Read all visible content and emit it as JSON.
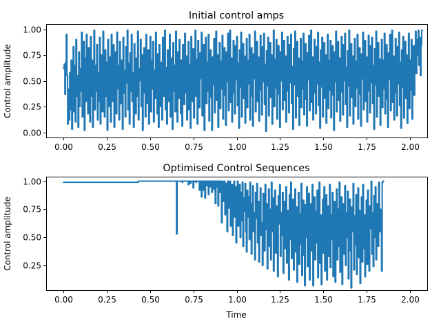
{
  "chart_data": [
    {
      "type": "line",
      "title": "Initial control amps",
      "xlabel": "",
      "ylabel": "Control amplitude",
      "xlim": [
        -0.1,
        2.1
      ],
      "ylim": [
        -0.05,
        1.05
      ],
      "xticks": [
        "0.00",
        "0.25",
        "0.50",
        "0.75",
        "1.00",
        "1.25",
        "1.50",
        "1.75",
        "2.00"
      ],
      "yticks": [
        "0.00",
        "0.25",
        "0.50",
        "0.75",
        "1.00"
      ],
      "grid": false,
      "color": "#1f77b4",
      "drawstyle": "steps",
      "step": 0.004,
      "series": [
        {
          "values": [
            0.62,
            0.66,
            0.37,
            0.68,
            0.95,
            0.55,
            0.08,
            0.42,
            0.12,
            0.58,
            0.22,
            0.7,
            0.03,
            0.48,
            0.83,
            0.2,
            0.65,
            0.1,
            0.9,
            0.35,
            0.55,
            0.05,
            0.78,
            0.25,
            0.62,
            0.4,
            0.97,
            0.15,
            0.5,
            0.88,
            0.02,
            0.72,
            0.3,
            0.95,
            0.45,
            0.18,
            0.82,
            0.6,
            0.1,
            0.93,
            0.35,
            0.7,
            0.05,
            0.52,
            0.99,
            0.22,
            0.65,
            0.4,
            0.85,
            0.12,
            0.58,
            0.3,
            0.92,
            0.08,
            0.75,
            0.45,
            0.2,
            0.98,
            0.55,
            0.15,
            0.8,
            0.35,
            0.68,
            0.02,
            0.9,
            0.48,
            0.25,
            0.73,
            0.1,
            0.95,
            0.6,
            0.3,
            0.85,
            0.05,
            0.5,
            0.78,
            0.18,
            0.97,
            0.42,
            0.65,
            0.12,
            0.88,
            0.55,
            0.28,
            0.7,
            0.03,
            0.92,
            0.38,
            0.6,
            0.15,
            0.83,
            0.48,
            0.99,
            0.22,
            0.67,
            0.08,
            0.77,
            0.4,
            0.95,
            0.3,
            0.58,
            0.05,
            0.86,
            0.45,
            0.18,
            0.72,
            0.35,
            0.98,
            0.12,
            0.62,
            0.5,
            0.9,
            0.25,
            0.75,
            0.02,
            0.55,
            0.82,
            0.38,
            0.15,
            0.95,
            0.65,
            0.28,
            0.8,
            0.08,
            0.47,
            0.93,
            0.2,
            0.7,
            0.42,
            0.88,
            0.1,
            0.6,
            0.33,
            0.97,
            0.52,
            0.18,
            0.76,
            0.05,
            0.85,
            0.45,
            0.25,
            0.68,
            0.12,
            0.92,
            0.55,
            0.35,
            0.99,
            0.22,
            0.63,
            0.08,
            0.8,
            0.48,
            0.3,
            0.95,
            0.15,
            0.58,
            0.72,
            0.03,
            0.87,
            0.4,
            0.65,
            0.2,
            0.98,
            0.52,
            0.1,
            0.78,
            0.33,
            0.9,
            0.45,
            0.18,
            0.7,
            0.06,
            0.85,
            0.6,
            0.27,
            0.96,
            0.38,
            0.74,
            0.12,
            0.55,
            0.88,
            0.22,
            0.66,
            0.04,
            0.93,
            0.47,
            0.3,
            0.81,
            0.14,
            0.59,
            0.99,
            0.35,
            0.71,
            0.08,
            0.89,
            0.43,
            0.24,
            0.77,
            0.52,
            0.97,
            0.16,
            0.63,
            0.85,
            0.02,
            0.5,
            0.92,
            0.28,
            0.68,
            0.4,
            0.95,
            0.11,
            0.57,
            0.8,
            0.34,
            0.02,
            0.73,
            0.46,
            0.91,
            0.19,
            0.64,
            0.98,
            0.31,
            0.75,
            0.05,
            0.54,
            0.87,
            0.23,
            0.69,
            0.42,
            0.94,
            0.13,
            0.6,
            0.82,
            0.36,
            0.07,
            0.78,
            0.49,
            0.96,
            0.21,
            0.65,
            0.99,
            0.29,
            0.72,
            0.1,
            0.56,
            0.89,
            0.38,
            0.18,
            0.84,
            0.51,
            0.93,
            0.26,
            0.67,
            0.04,
            0.8,
            0.44,
            0.97,
            0.15,
            0.61,
            0.86,
            0.33,
            0.74,
            0.09,
            0.58,
            0.91,
            0.24,
            0.7,
            0.47,
            0.95,
            0.12,
            0.63,
            0.82,
            0.35,
            0.06,
            0.76,
            0.52,
            0.98,
            0.2,
            0.68,
            0.88,
            0.3,
            0.73,
            0.11,
            0.57,
            0.94,
            0.41,
            0.17,
            0.83,
            0.49,
            0.96,
            0.27,
            0.66,
            0.01,
            0.79,
            0.45,
            0.92,
            0.16,
            0.62,
            0.87,
            0.34,
            0.75,
            0.08,
            0.55,
            0.99,
            0.25,
            0.71,
            0.43,
            0.9,
            0.13,
            0.6,
            0.84,
            0.37,
            0.05,
            0.78,
            0.5,
            0.97,
            0.22,
            0.67,
            0.89,
            0.31,
            0.74,
            0.1,
            0.56,
            0.93,
            0.4,
            0.19,
            0.85,
            0.48,
            0.95,
            0.28,
            0.64,
            0.03,
            0.81,
            0.46,
            0.98,
            0.14,
            0.61,
            0.88,
            0.35,
            0.72,
            0.07,
            0.53,
            0.91,
            0.24,
            0.69,
            0.42,
            0.96,
            0.17,
            0.63,
            0.86,
            0.32,
            0.06,
            0.77,
            0.51,
            0.94,
            0.21,
            0.65,
            0.99,
            0.29,
            0.73,
            0.12,
            0.58,
            0.9,
            0.38,
            0.18,
            0.83,
            0.47,
            0.97,
            0.26,
            0.68,
            0.04,
            0.8,
            0.44,
            0.92,
            0.15,
            0.6,
            0.87,
            0.33,
            0.75,
            0.09,
            0.55,
            0.95,
            0.23,
            0.7,
            0.41,
            0.89,
            0.14,
            0.62,
            0.84,
            0.36,
            0.02,
            0.78,
            0.49,
            0.98,
            0.2,
            0.66,
            0.88,
            0.31,
            0.72,
            0.11,
            0.57,
            0.93,
            0.39,
            0.17,
            0.85,
            0.5,
            0.96,
            0.27,
            0.63,
            0.05,
            0.79,
            0.45,
            0.99,
            0.16,
            0.61,
            0.86,
            0.34,
            0.74,
            0.08,
            0.54,
            0.91,
            0.25,
            0.69,
            0.43,
            0.95,
            0.13,
            0.59,
            0.82,
            0.37,
            0.06,
            0.76,
            0.52,
            0.97,
            0.22,
            0.67,
            0.89,
            0.3,
            0.73,
            0.1,
            0.56,
            0.94,
            0.4,
            0.19,
            0.84,
            0.48,
            0.92,
            0.28,
            0.65,
            0.03,
            0.81,
            0.46,
            0.98,
            0.15,
            0.62,
            0.87,
            0.35,
            0.71,
            0.07,
            0.53,
            0.9,
            0.24,
            0.7,
            0.42,
            0.96,
            0.18,
            0.64,
            0.85,
            0.32,
            0.05,
            0.77,
            0.51,
            0.95,
            0.21,
            0.66,
            0.99,
            0.29,
            0.74,
            0.12,
            0.58,
            0.91,
            0.38,
            0.16,
            0.83,
            0.47,
            0.97,
            0.26,
            0.68,
            0.04,
            0.8,
            0.44,
            0.93,
            0.14,
            0.6,
            0.88,
            0.33,
            0.75,
            0.09,
            0.55,
            0.96,
            0.23,
            0.7,
            0.41,
            0.9,
            0.13,
            0.62,
            0.84,
            0.36,
            0.72,
            0.98,
            0.57,
            0.9,
            0.75,
            0.99,
            0.65,
            0.92,
            0.55,
            0.85,
            0.99
          ]
        }
      ]
    },
    {
      "type": "line",
      "title": "Optimised Control Sequences",
      "xlabel": "Time",
      "ylabel": "Control amplitude",
      "xlim": [
        -0.1,
        2.1
      ],
      "ylim": [
        0.03,
        1.04
      ],
      "xticks": [
        "0.00",
        "0.25",
        "0.50",
        "0.75",
        "1.00",
        "1.25",
        "1.50",
        "1.75",
        "2.00"
      ],
      "yticks": [
        "0.25",
        "0.50",
        "0.75",
        "1.00"
      ],
      "grid": false,
      "color": "#1f77b4",
      "drawstyle": "steps",
      "step": 0.004,
      "series": [
        {
          "values": [
            0.99,
            0.99,
            0.99,
            0.99,
            0.99,
            0.99,
            0.99,
            0.99,
            0.99,
            0.99,
            0.99,
            0.99,
            0.99,
            0.99,
            0.99,
            0.99,
            0.99,
            0.99,
            0.99,
            0.99,
            0.99,
            0.99,
            0.99,
            0.99,
            0.99,
            0.99,
            0.99,
            0.99,
            0.99,
            0.99,
            0.99,
            0.99,
            0.99,
            0.99,
            0.99,
            0.99,
            0.99,
            0.99,
            0.99,
            0.99,
            0.99,
            0.99,
            0.99,
            0.99,
            0.99,
            0.99,
            0.99,
            0.99,
            0.99,
            0.99,
            0.99,
            0.99,
            0.99,
            0.99,
            0.99,
            0.99,
            0.99,
            0.99,
            0.99,
            0.99,
            0.99,
            0.99,
            0.99,
            0.99,
            0.99,
            0.99,
            0.99,
            0.99,
            0.99,
            0.99,
            0.99,
            0.99,
            0.99,
            0.99,
            0.99,
            0.99,
            0.99,
            0.99,
            0.99,
            0.99,
            0.99,
            0.99,
            0.99,
            0.99,
            0.99,
            0.99,
            0.99,
            0.99,
            0.99,
            0.99,
            0.99,
            0.99,
            0.99,
            0.99,
            0.99,
            0.99,
            0.99,
            0.99,
            0.99,
            0.99,
            0.99,
            0.99,
            0.99,
            0.99,
            0.99,
            0.99,
            0.99,
            0.99,
            1.0,
            1.0,
            1.0,
            1.0,
            1.0,
            1.0,
            1.0,
            1.0,
            1.0,
            1.0,
            1.0,
            1.0,
            1.0,
            1.0,
            1.0,
            1.0,
            1.0,
            1.0,
            1.0,
            1.0,
            1.0,
            1.0,
            1.0,
            1.0,
            1.0,
            1.0,
            1.0,
            1.0,
            1.0,
            1.0,
            1.0,
            1.0,
            1.0,
            1.0,
            1.0,
            1.0,
            1.0,
            1.0,
            1.0,
            1.0,
            1.0,
            1.0,
            1.0,
            1.0,
            1.0,
            1.0,
            1.0,
            1.0,
            1.0,
            1.0,
            1.0,
            1.0,
            1.0,
            1.0,
            1.0,
            0.53,
            1.0,
            1.0,
            1.0,
            1.0,
            1.0,
            1.0,
            1.0,
            0.99,
            1.0,
            1.0,
            1.0,
            1.0,
            1.0,
            1.0,
            1.0,
            1.0,
            0.97,
            1.0,
            1.0,
            0.98,
            1.0,
            1.0,
            1.0,
            0.94,
            1.0,
            1.0,
            1.0,
            0.99,
            1.0,
            1.0,
            1.0,
            1.0,
            0.92,
            1.0,
            1.0,
            0.86,
            1.0,
            1.0,
            0.92,
            1.0,
            0.85,
            1.0,
            1.0,
            0.96,
            1.0,
            0.88,
            1.0,
            1.0,
            0.95,
            1.0,
            0.9,
            1.0,
            1.0,
            0.93,
            1.0,
            0.8,
            1.0,
            0.95,
            1.0,
            0.78,
            1.0,
            0.9,
            1.0,
            1.0,
            0.63,
            1.0,
            0.92,
            0.82,
            1.0,
            0.7,
            0.98,
            0.9,
            0.55,
            1.0,
            0.85,
            0.76,
            1.0,
            0.6,
            0.92,
            0.97,
            0.52,
            0.88,
            1.0,
            0.68,
            0.95,
            0.45,
            0.83,
            1.0,
            0.6,
            0.78,
            0.97,
            0.5,
            0.9,
            0.65,
            0.99,
            0.42,
            0.85,
            0.73,
            0.98,
            0.55,
            0.37,
            0.92,
            0.68,
            0.86,
            0.48,
            0.99,
            0.62,
            0.35,
            0.8,
            0.96,
            0.55,
            0.72,
            0.3,
            0.9,
            0.67,
            0.98,
            0.45,
            0.82,
            0.28,
            0.74,
            0.94,
            0.52,
            0.63,
            0.25,
            0.89,
            0.7,
            0.38,
            0.97,
            0.57,
            0.8,
            0.22,
            0.66,
            0.93,
            0.42,
            0.75,
            0.3,
            0.99,
            0.55,
            0.85,
            0.2,
            0.68,
            0.92,
            0.36,
            0.78,
            0.47,
            0.15,
            0.87,
            0.62,
            0.97,
            0.33,
            0.72,
            0.52,
            0.9,
            0.18,
            0.65,
            0.82,
            0.4,
            0.95,
            0.27,
            0.74,
            0.58,
            0.12,
            0.88,
            0.48,
            0.99,
            0.31,
            0.69,
            0.84,
            0.21,
            0.6,
            0.93,
            0.37,
            0.77,
            0.1,
            0.55,
            0.9,
            0.26,
            0.71,
            0.44,
            0.98,
            0.16,
            0.64,
            0.83,
            0.34,
            0.07,
            0.79,
            0.5,
            0.95,
            0.24,
            0.68,
            0.89,
            0.12,
            0.57,
            0.8,
            0.38,
            0.97,
            0.07,
            0.62,
            0.86,
            0.3,
            0.73,
            0.45,
            0.92,
            0.14,
            0.58,
            0.99,
            0.27,
            0.7,
            0.08,
            0.53,
            0.84,
            0.36,
            0.95,
            0.2,
            0.66,
            0.88,
            0.12,
            0.6,
            0.78,
            0.33,
            0.97,
            0.23,
            0.7,
            0.48,
            0.9,
            0.15,
            0.63,
            0.82,
            0.1,
            0.55,
            0.93,
            0.3,
            0.75,
            0.42,
            0.99,
            0.19,
            0.67,
            0.86,
            0.08,
            0.58,
            0.8,
            0.35,
            0.96,
            0.25,
            0.72,
            0.5,
            0.91,
            0.13,
            0.65,
            0.84,
            0.38,
            0.05,
            0.77,
            0.55,
            0.98,
            0.21,
            0.69,
            0.43,
            0.88,
            0.17,
            0.6,
            0.94,
            0.32,
            0.74,
            0.09,
            0.52,
            0.86,
            0.28,
            0.97,
            0.4,
            0.7,
            0.15,
            0.62,
            0.83,
            0.26,
            0.92,
            0.47,
            0.2,
            0.78,
            0.58,
            1.0,
            0.35,
            0.72,
            0.24,
            0.87,
            0.5,
            0.95,
            0.3,
            0.65,
            0.8,
            0.42,
            0.99,
            0.55,
            0.75,
            0.68,
            0.2,
            0.99,
            1.0
          ]
        }
      ]
    }
  ]
}
